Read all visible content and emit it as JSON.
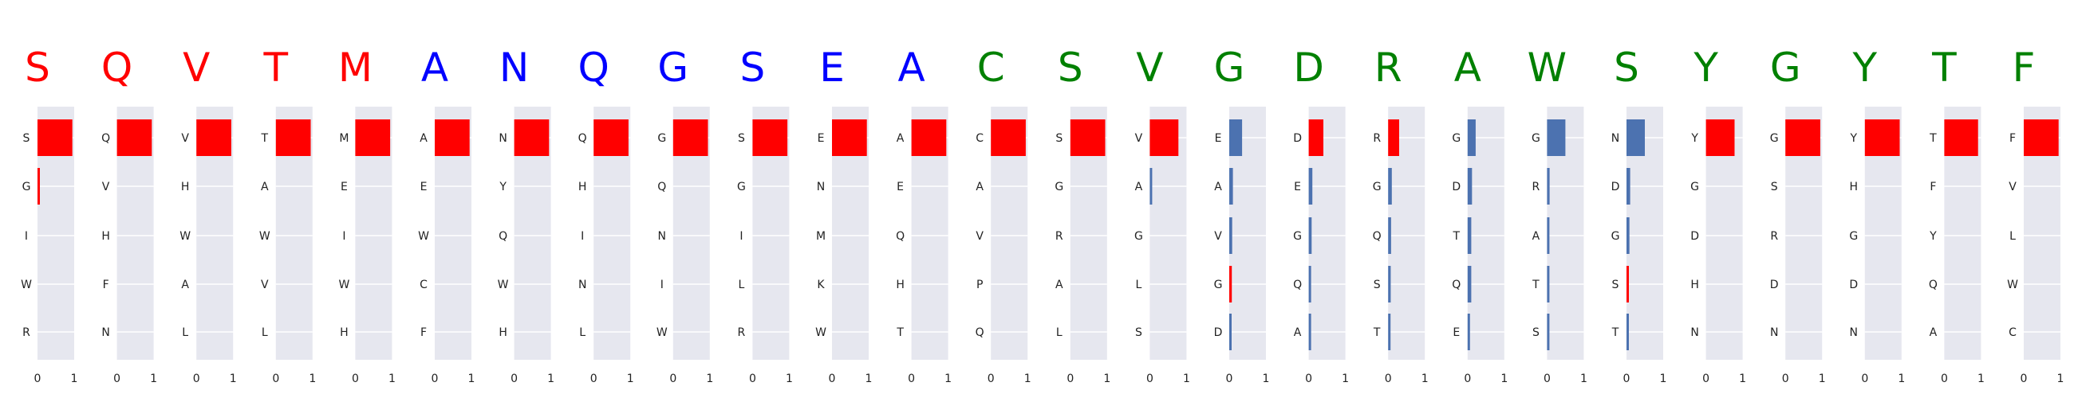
{
  "chart_data": {
    "type": "bar",
    "orientation": "horizontal",
    "xlim": [
      0,
      1
    ],
    "xticks": [
      "0",
      "1"
    ],
    "grid": true,
    "colors": {
      "red": "#ff0000",
      "blue": "#0000ff",
      "green": "#008000",
      "bar_blue": "#4c72b0",
      "bar_red": "#ff0000"
    },
    "panels": [
      {
        "title": "S",
        "title_color": "red",
        "bars": [
          {
            "label": "S",
            "value": 0.95,
            "color": "bar_red"
          },
          {
            "label": "G",
            "value": 0.01,
            "color": "bar_red"
          },
          {
            "label": "I",
            "value": 0.0,
            "color": "bar_red"
          },
          {
            "label": "W",
            "value": 0.0,
            "color": "bar_red"
          },
          {
            "label": "R",
            "value": 0.0,
            "color": "bar_red"
          }
        ]
      },
      {
        "title": "Q",
        "title_color": "red",
        "bars": [
          {
            "label": "Q",
            "value": 0.95,
            "color": "bar_red"
          },
          {
            "label": "V",
            "value": 0.0,
            "color": "bar_red"
          },
          {
            "label": "H",
            "value": 0.0,
            "color": "bar_red"
          },
          {
            "label": "F",
            "value": 0.0,
            "color": "bar_red"
          },
          {
            "label": "N",
            "value": 0.0,
            "color": "bar_red"
          }
        ]
      },
      {
        "title": "V",
        "title_color": "red",
        "bars": [
          {
            "label": "V",
            "value": 0.95,
            "color": "bar_red"
          },
          {
            "label": "H",
            "value": 0.0,
            "color": "bar_red"
          },
          {
            "label": "W",
            "value": 0.0,
            "color": "bar_red"
          },
          {
            "label": "A",
            "value": 0.0,
            "color": "bar_red"
          },
          {
            "label": "L",
            "value": 0.0,
            "color": "bar_red"
          }
        ]
      },
      {
        "title": "T",
        "title_color": "red",
        "bars": [
          {
            "label": "T",
            "value": 0.95,
            "color": "bar_red"
          },
          {
            "label": "A",
            "value": 0.0,
            "color": "bar_red"
          },
          {
            "label": "W",
            "value": 0.0,
            "color": "bar_red"
          },
          {
            "label": "V",
            "value": 0.0,
            "color": "bar_red"
          },
          {
            "label": "L",
            "value": 0.0,
            "color": "bar_red"
          }
        ]
      },
      {
        "title": "M",
        "title_color": "red",
        "bars": [
          {
            "label": "M",
            "value": 0.95,
            "color": "bar_red"
          },
          {
            "label": "E",
            "value": 0.0,
            "color": "bar_red"
          },
          {
            "label": "I",
            "value": 0.0,
            "color": "bar_red"
          },
          {
            "label": "W",
            "value": 0.0,
            "color": "bar_red"
          },
          {
            "label": "H",
            "value": 0.0,
            "color": "bar_red"
          }
        ]
      },
      {
        "title": "A",
        "title_color": "blue",
        "bars": [
          {
            "label": "A",
            "value": 0.95,
            "color": "bar_red"
          },
          {
            "label": "E",
            "value": 0.0,
            "color": "bar_red"
          },
          {
            "label": "W",
            "value": 0.0,
            "color": "bar_red"
          },
          {
            "label": "C",
            "value": 0.0,
            "color": "bar_red"
          },
          {
            "label": "F",
            "value": 0.0,
            "color": "bar_red"
          }
        ]
      },
      {
        "title": "N",
        "title_color": "blue",
        "bars": [
          {
            "label": "N",
            "value": 0.95,
            "color": "bar_red"
          },
          {
            "label": "Y",
            "value": 0.0,
            "color": "bar_red"
          },
          {
            "label": "Q",
            "value": 0.0,
            "color": "bar_red"
          },
          {
            "label": "W",
            "value": 0.0,
            "color": "bar_red"
          },
          {
            "label": "H",
            "value": 0.0,
            "color": "bar_red"
          }
        ]
      },
      {
        "title": "Q",
        "title_color": "blue",
        "bars": [
          {
            "label": "Q",
            "value": 0.95,
            "color": "bar_red"
          },
          {
            "label": "H",
            "value": 0.0,
            "color": "bar_red"
          },
          {
            "label": "I",
            "value": 0.0,
            "color": "bar_red"
          },
          {
            "label": "N",
            "value": 0.0,
            "color": "bar_red"
          },
          {
            "label": "L",
            "value": 0.0,
            "color": "bar_red"
          }
        ]
      },
      {
        "title": "G",
        "title_color": "blue",
        "bars": [
          {
            "label": "G",
            "value": 0.95,
            "color": "bar_red"
          },
          {
            "label": "Q",
            "value": 0.0,
            "color": "bar_red"
          },
          {
            "label": "N",
            "value": 0.0,
            "color": "bar_red"
          },
          {
            "label": "I",
            "value": 0.0,
            "color": "bar_red"
          },
          {
            "label": "W",
            "value": 0.0,
            "color": "bar_red"
          }
        ]
      },
      {
        "title": "S",
        "title_color": "blue",
        "bars": [
          {
            "label": "S",
            "value": 0.95,
            "color": "bar_red"
          },
          {
            "label": "G",
            "value": 0.0,
            "color": "bar_red"
          },
          {
            "label": "I",
            "value": 0.0,
            "color": "bar_red"
          },
          {
            "label": "L",
            "value": 0.0,
            "color": "bar_red"
          },
          {
            "label": "R",
            "value": 0.0,
            "color": "bar_red"
          }
        ]
      },
      {
        "title": "E",
        "title_color": "blue",
        "bars": [
          {
            "label": "E",
            "value": 0.95,
            "color": "bar_red"
          },
          {
            "label": "N",
            "value": 0.0,
            "color": "bar_red"
          },
          {
            "label": "M",
            "value": 0.0,
            "color": "bar_red"
          },
          {
            "label": "K",
            "value": 0.0,
            "color": "bar_red"
          },
          {
            "label": "W",
            "value": 0.0,
            "color": "bar_red"
          }
        ]
      },
      {
        "title": "A",
        "title_color": "blue",
        "bars": [
          {
            "label": "A",
            "value": 0.95,
            "color": "bar_red"
          },
          {
            "label": "E",
            "value": 0.0,
            "color": "bar_red"
          },
          {
            "label": "Q",
            "value": 0.0,
            "color": "bar_red"
          },
          {
            "label": "H",
            "value": 0.0,
            "color": "bar_red"
          },
          {
            "label": "T",
            "value": 0.0,
            "color": "bar_red"
          }
        ]
      },
      {
        "title": "C",
        "title_color": "green",
        "bars": [
          {
            "label": "C",
            "value": 0.95,
            "color": "bar_red"
          },
          {
            "label": "A",
            "value": 0.0,
            "color": "bar_red"
          },
          {
            "label": "V",
            "value": 0.0,
            "color": "bar_red"
          },
          {
            "label": "P",
            "value": 0.0,
            "color": "bar_red"
          },
          {
            "label": "Q",
            "value": 0.0,
            "color": "bar_red"
          }
        ]
      },
      {
        "title": "S",
        "title_color": "green",
        "bars": [
          {
            "label": "S",
            "value": 0.95,
            "color": "bar_red"
          },
          {
            "label": "G",
            "value": 0.0,
            "color": "bar_red"
          },
          {
            "label": "R",
            "value": 0.0,
            "color": "bar_red"
          },
          {
            "label": "A",
            "value": 0.0,
            "color": "bar_red"
          },
          {
            "label": "L",
            "value": 0.0,
            "color": "bar_red"
          }
        ]
      },
      {
        "title": "V",
        "title_color": "green",
        "bars": [
          {
            "label": "V",
            "value": 0.78,
            "color": "bar_red"
          },
          {
            "label": "A",
            "value": 0.06,
            "color": "bar_blue"
          },
          {
            "label": "G",
            "value": 0.0,
            "color": "bar_blue"
          },
          {
            "label": "L",
            "value": 0.0,
            "color": "bar_blue"
          },
          {
            "label": "S",
            "value": 0.0,
            "color": "bar_blue"
          }
        ]
      },
      {
        "title": "G",
        "title_color": "green",
        "bars": [
          {
            "label": "E",
            "value": 0.35,
            "color": "bar_blue"
          },
          {
            "label": "A",
            "value": 0.1,
            "color": "bar_blue"
          },
          {
            "label": "V",
            "value": 0.08,
            "color": "bar_blue"
          },
          {
            "label": "G",
            "value": 0.07,
            "color": "bar_red"
          },
          {
            "label": "D",
            "value": 0.04,
            "color": "bar_blue"
          }
        ]
      },
      {
        "title": "D",
        "title_color": "green",
        "bars": [
          {
            "label": "D",
            "value": 0.4,
            "color": "bar_red"
          },
          {
            "label": "E",
            "value": 0.1,
            "color": "bar_blue"
          },
          {
            "label": "G",
            "value": 0.08,
            "color": "bar_blue"
          },
          {
            "label": "Q",
            "value": 0.05,
            "color": "bar_blue"
          },
          {
            "label": "A",
            "value": 0.03,
            "color": "bar_blue"
          }
        ]
      },
      {
        "title": "R",
        "title_color": "green",
        "bars": [
          {
            "label": "R",
            "value": 0.3,
            "color": "bar_red"
          },
          {
            "label": "G",
            "value": 0.1,
            "color": "bar_blue"
          },
          {
            "label": "Q",
            "value": 0.08,
            "color": "bar_blue"
          },
          {
            "label": "S",
            "value": 0.07,
            "color": "bar_blue"
          },
          {
            "label": "T",
            "value": 0.03,
            "color": "bar_blue"
          }
        ]
      },
      {
        "title": "A",
        "title_color": "green",
        "bars": [
          {
            "label": "G",
            "value": 0.22,
            "color": "bar_blue"
          },
          {
            "label": "D",
            "value": 0.12,
            "color": "bar_blue"
          },
          {
            "label": "T",
            "value": 0.1,
            "color": "bar_blue"
          },
          {
            "label": "Q",
            "value": 0.1,
            "color": "bar_blue"
          },
          {
            "label": "E",
            "value": 0.03,
            "color": "bar_blue"
          }
        ]
      },
      {
        "title": "W",
        "title_color": "green",
        "bars": [
          {
            "label": "G",
            "value": 0.5,
            "color": "bar_blue"
          },
          {
            "label": "R",
            "value": 0.07,
            "color": "bar_blue"
          },
          {
            "label": "A",
            "value": 0.05,
            "color": "bar_blue"
          },
          {
            "label": "T",
            "value": 0.04,
            "color": "bar_blue"
          },
          {
            "label": "S",
            "value": 0.03,
            "color": "bar_blue"
          }
        ]
      },
      {
        "title": "S",
        "title_color": "green",
        "bars": [
          {
            "label": "N",
            "value": 0.5,
            "color": "bar_blue"
          },
          {
            "label": "D",
            "value": 0.1,
            "color": "bar_blue"
          },
          {
            "label": "G",
            "value": 0.08,
            "color": "bar_blue"
          },
          {
            "label": "S",
            "value": 0.06,
            "color": "bar_red"
          },
          {
            "label": "T",
            "value": 0.03,
            "color": "bar_blue"
          }
        ]
      },
      {
        "title": "Y",
        "title_color": "green",
        "bars": [
          {
            "label": "Y",
            "value": 0.78,
            "color": "bar_red"
          },
          {
            "label": "G",
            "value": 0.0,
            "color": "bar_red"
          },
          {
            "label": "D",
            "value": 0.0,
            "color": "bar_red"
          },
          {
            "label": "H",
            "value": 0.0,
            "color": "bar_red"
          },
          {
            "label": "N",
            "value": 0.0,
            "color": "bar_red"
          }
        ]
      },
      {
        "title": "G",
        "title_color": "green",
        "bars": [
          {
            "label": "G",
            "value": 0.95,
            "color": "bar_red"
          },
          {
            "label": "S",
            "value": 0.0,
            "color": "bar_red"
          },
          {
            "label": "R",
            "value": 0.0,
            "color": "bar_red"
          },
          {
            "label": "D",
            "value": 0.0,
            "color": "bar_red"
          },
          {
            "label": "N",
            "value": 0.0,
            "color": "bar_red"
          }
        ]
      },
      {
        "title": "Y",
        "title_color": "green",
        "bars": [
          {
            "label": "Y",
            "value": 0.95,
            "color": "bar_red"
          },
          {
            "label": "H",
            "value": 0.0,
            "color": "bar_red"
          },
          {
            "label": "G",
            "value": 0.0,
            "color": "bar_red"
          },
          {
            "label": "D",
            "value": 0.0,
            "color": "bar_red"
          },
          {
            "label": "N",
            "value": 0.0,
            "color": "bar_red"
          }
        ]
      },
      {
        "title": "T",
        "title_color": "green",
        "bars": [
          {
            "label": "T",
            "value": 0.92,
            "color": "bar_red"
          },
          {
            "label": "F",
            "value": 0.0,
            "color": "bar_red"
          },
          {
            "label": "Y",
            "value": 0.0,
            "color": "bar_red"
          },
          {
            "label": "Q",
            "value": 0.0,
            "color": "bar_red"
          },
          {
            "label": "A",
            "value": 0.0,
            "color": "bar_red"
          }
        ]
      },
      {
        "title": "F",
        "title_color": "green",
        "bars": [
          {
            "label": "F",
            "value": 0.95,
            "color": "bar_red"
          },
          {
            "label": "V",
            "value": 0.0,
            "color": "bar_red"
          },
          {
            "label": "L",
            "value": 0.0,
            "color": "bar_red"
          },
          {
            "label": "W",
            "value": 0.0,
            "color": "bar_red"
          },
          {
            "label": "C",
            "value": 0.0,
            "color": "bar_red"
          }
        ]
      }
    ]
  }
}
